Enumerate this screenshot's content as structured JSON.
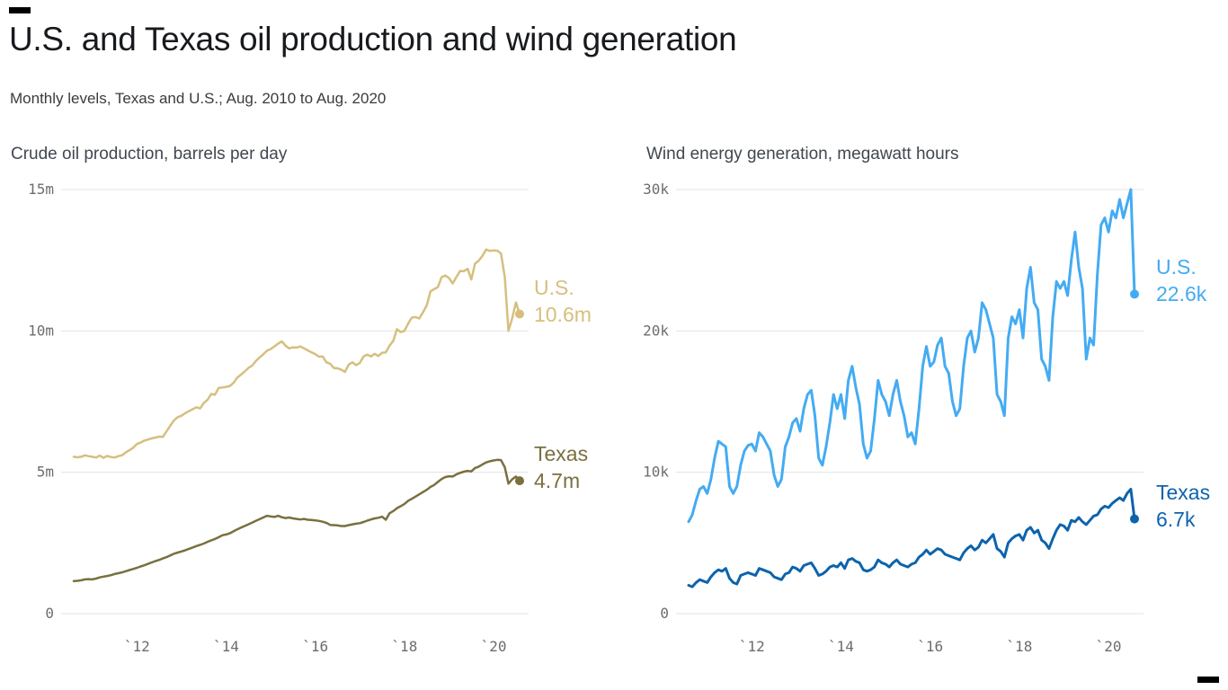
{
  "page": {
    "title": "U.S. and Texas oil production and wind generation",
    "subtitle": "Monthly levels, Texas and U.S.; Aug. 2010 to Aug. 2020"
  },
  "branding": {
    "mark_color": "#000000"
  },
  "chart_data": [
    {
      "id": "oil",
      "type": "line",
      "title": "Crude oil production, barrels per day",
      "x_start": "2010-08",
      "x_end": "2020-08",
      "x_interval": "monthly",
      "xlim": [
        2010.583,
        2020.583
      ],
      "ylim": [
        0,
        15
      ],
      "y_unit": "million barrels per day",
      "grid": "horizontal",
      "legend_position": "right-end-labels",
      "yticks": [
        {
          "v": 0,
          "label": "0"
        },
        {
          "v": 5,
          "label": "5m"
        },
        {
          "v": 10,
          "label": "10m"
        },
        {
          "v": 15,
          "label": "15m"
        }
      ],
      "xticks": [
        {
          "v": 2012,
          "label": "`12"
        },
        {
          "v": 2014,
          "label": "`14"
        },
        {
          "v": 2016,
          "label": "`16"
        },
        {
          "v": 2018,
          "label": "`18"
        },
        {
          "v": 2020,
          "label": "`20"
        }
      ],
      "series": [
        {
          "name": "U.S.",
          "color": "#d6bf7e",
          "end_label": "U.S.",
          "end_value": 10.6,
          "end_value_label": "10.6m",
          "values": [
            5.55,
            5.53,
            5.55,
            5.6,
            5.57,
            5.55,
            5.52,
            5.59,
            5.51,
            5.58,
            5.54,
            5.52,
            5.57,
            5.6,
            5.7,
            5.78,
            5.87,
            6.0,
            6.05,
            6.12,
            6.16,
            6.2,
            6.23,
            6.26,
            6.25,
            6.45,
            6.65,
            6.84,
            6.95,
            7.0,
            7.09,
            7.16,
            7.23,
            7.3,
            7.26,
            7.45,
            7.56,
            7.77,
            7.74,
            7.98,
            8.0,
            8.02,
            8.05,
            8.16,
            8.35,
            8.45,
            8.56,
            8.69,
            8.77,
            8.93,
            9.06,
            9.17,
            9.3,
            9.36,
            9.45,
            9.55,
            9.63,
            9.48,
            9.38,
            9.42,
            9.41,
            9.45,
            9.38,
            9.31,
            9.24,
            9.18,
            9.09,
            9.1,
            8.89,
            8.84,
            8.69,
            8.68,
            8.63,
            8.55,
            8.81,
            8.89,
            8.79,
            8.87,
            9.1,
            9.16,
            9.1,
            9.19,
            9.11,
            9.23,
            9.24,
            9.48,
            9.65,
            10.06,
            9.96,
            10.0,
            10.26,
            10.47,
            10.49,
            10.44,
            10.66,
            10.9,
            11.4,
            11.48,
            11.55,
            11.9,
            11.96,
            11.87,
            11.68,
            11.91,
            12.12,
            12.11,
            12.2,
            11.82,
            12.38,
            12.48,
            12.66,
            12.88,
            12.83,
            12.85,
            12.84,
            12.74,
            11.91,
            10.0,
            10.44,
            11.01,
            10.6
          ]
        },
        {
          "name": "Texas",
          "color": "#79703f",
          "end_label": "Texas",
          "end_value": 4.7,
          "end_value_label": "4.7m",
          "values": [
            1.15,
            1.16,
            1.18,
            1.21,
            1.22,
            1.21,
            1.24,
            1.28,
            1.31,
            1.33,
            1.36,
            1.4,
            1.43,
            1.46,
            1.5,
            1.54,
            1.58,
            1.62,
            1.67,
            1.71,
            1.76,
            1.81,
            1.86,
            1.9,
            1.95,
            2.0,
            2.06,
            2.12,
            2.16,
            2.2,
            2.24,
            2.29,
            2.34,
            2.39,
            2.43,
            2.48,
            2.54,
            2.59,
            2.64,
            2.7,
            2.77,
            2.8,
            2.84,
            2.91,
            2.98,
            3.04,
            3.1,
            3.16,
            3.22,
            3.28,
            3.34,
            3.4,
            3.46,
            3.44,
            3.42,
            3.46,
            3.41,
            3.38,
            3.4,
            3.37,
            3.35,
            3.33,
            3.35,
            3.32,
            3.31,
            3.3,
            3.28,
            3.25,
            3.21,
            3.14,
            3.13,
            3.12,
            3.1,
            3.1,
            3.13,
            3.16,
            3.18,
            3.2,
            3.24,
            3.29,
            3.33,
            3.37,
            3.39,
            3.43,
            3.32,
            3.55,
            3.63,
            3.73,
            3.8,
            3.88,
            3.99,
            4.06,
            4.14,
            4.22,
            4.3,
            4.38,
            4.48,
            4.55,
            4.66,
            4.76,
            4.83,
            4.86,
            4.85,
            4.93,
            4.98,
            5.02,
            5.05,
            5.03,
            5.15,
            5.2,
            5.28,
            5.35,
            5.39,
            5.42,
            5.44,
            5.43,
            5.18,
            4.6,
            4.75,
            4.85,
            4.7
          ]
        }
      ]
    },
    {
      "id": "wind",
      "type": "line",
      "title": "Wind energy generation, megawatt hours",
      "x_start": "2010-08",
      "x_end": "2020-08",
      "x_interval": "monthly",
      "xlim": [
        2010.583,
        2020.583
      ],
      "ylim": [
        0,
        30
      ],
      "y_unit": "thousand megawatt hours",
      "grid": "horizontal",
      "legend_position": "right-end-labels",
      "yticks": [
        {
          "v": 0,
          "label": "0"
        },
        {
          "v": 10,
          "label": "10k"
        },
        {
          "v": 20,
          "label": "20k"
        },
        {
          "v": 30,
          "label": "30k"
        }
      ],
      "xticks": [
        {
          "v": 2012,
          "label": "`12"
        },
        {
          "v": 2014,
          "label": "`14"
        },
        {
          "v": 2016,
          "label": "`16"
        },
        {
          "v": 2018,
          "label": "`18"
        },
        {
          "v": 2020,
          "label": "`20"
        }
      ],
      "series": [
        {
          "name": "U.S.",
          "color": "#44abf3",
          "end_label": "U.S.",
          "end_value": 22.6,
          "end_value_label": "22.6k",
          "values": [
            6.5,
            7.0,
            8.0,
            8.8,
            9.0,
            8.5,
            9.5,
            11.0,
            12.2,
            12.0,
            11.8,
            9.0,
            8.5,
            9.0,
            10.5,
            11.5,
            11.9,
            12.0,
            11.5,
            12.8,
            12.5,
            12.0,
            11.5,
            9.8,
            9.0,
            9.5,
            11.8,
            12.5,
            13.5,
            13.8,
            12.9,
            14.5,
            15.5,
            15.8,
            14.0,
            11.0,
            10.5,
            11.8,
            13.5,
            15.5,
            14.5,
            15.5,
            13.8,
            16.5,
            17.5,
            16.0,
            14.8,
            12.0,
            11.0,
            11.5,
            13.8,
            16.5,
            15.5,
            15.0,
            14.0,
            15.5,
            16.5,
            15.0,
            14.0,
            12.5,
            12.8,
            12.0,
            14.5,
            17.5,
            18.9,
            17.5,
            17.8,
            19.0,
            19.5,
            17.5,
            17.0,
            15.0,
            14.0,
            14.5,
            17.5,
            19.5,
            20.0,
            18.5,
            19.5,
            22.0,
            21.5,
            20.5,
            19.5,
            15.5,
            15.0,
            14.0,
            19.5,
            21.0,
            20.5,
            21.5,
            19.5,
            23.0,
            24.5,
            22.0,
            21.5,
            18.0,
            17.5,
            16.5,
            21.0,
            23.5,
            23.0,
            23.5,
            22.5,
            25.0,
            27.0,
            24.5,
            23.0,
            18.0,
            19.5,
            19.0,
            24.0,
            27.5,
            28.0,
            27.0,
            28.5,
            28.0,
            29.3,
            28.0,
            29.0,
            30.0,
            22.6
          ]
        },
        {
          "name": "Texas",
          "color": "#0d63ad",
          "end_label": "Texas",
          "end_value": 6.7,
          "end_value_label": "6.7k",
          "values": [
            2.0,
            1.9,
            2.2,
            2.4,
            2.3,
            2.2,
            2.6,
            2.9,
            3.1,
            3.0,
            3.2,
            2.5,
            2.2,
            2.1,
            2.7,
            2.8,
            2.9,
            2.8,
            2.7,
            3.2,
            3.1,
            3.0,
            2.9,
            2.6,
            2.5,
            2.4,
            2.8,
            2.9,
            3.3,
            3.2,
            3.0,
            3.4,
            3.5,
            3.6,
            3.2,
            2.7,
            2.8,
            3.0,
            3.3,
            3.4,
            3.3,
            3.6,
            3.2,
            3.8,
            3.9,
            3.7,
            3.6,
            3.1,
            3.0,
            3.1,
            3.3,
            3.8,
            3.6,
            3.5,
            3.3,
            3.6,
            3.8,
            3.5,
            3.4,
            3.3,
            3.5,
            3.6,
            4.0,
            4.2,
            4.5,
            4.2,
            4.4,
            4.6,
            4.5,
            4.2,
            4.1,
            4.0,
            3.9,
            3.8,
            4.3,
            4.6,
            4.8,
            4.5,
            4.7,
            5.2,
            5.0,
            5.3,
            5.6,
            4.6,
            4.4,
            4.0,
            5.0,
            5.3,
            5.5,
            5.6,
            5.2,
            5.9,
            6.1,
            5.7,
            5.9,
            5.2,
            5.0,
            4.6,
            5.3,
            5.9,
            6.3,
            6.2,
            5.9,
            6.6,
            6.5,
            6.8,
            6.5,
            6.3,
            6.6,
            6.9,
            7.0,
            7.4,
            7.6,
            7.5,
            7.8,
            8.0,
            8.2,
            8.0,
            8.5,
            8.8,
            6.7
          ]
        }
      ]
    }
  ]
}
